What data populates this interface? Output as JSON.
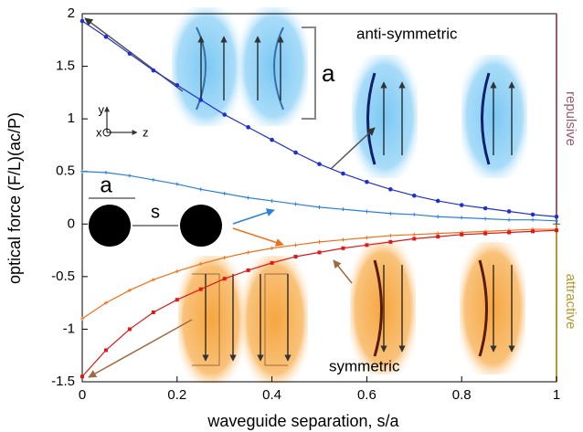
{
  "chart_data": {
    "type": "line",
    "xlabel": "waveguide separation, s/a",
    "ylabel": "optical force (F/L)(ac/P)",
    "x": [
      0,
      0.05,
      0.1,
      0.15,
      0.2,
      0.25,
      0.3,
      0.35,
      0.4,
      0.45,
      0.5,
      0.55,
      0.6,
      0.65,
      0.7,
      0.75,
      0.8,
      0.85,
      0.9,
      0.95,
      1
    ],
    "series": [
      {
        "color": "#1f2fd0",
        "marker": "circle",
        "values": [
          1.93,
          1.78,
          1.62,
          1.46,
          1.32,
          1.18,
          1.04,
          0.92,
          0.8,
          0.68,
          0.57,
          0.48,
          0.4,
          0.33,
          0.27,
          0.22,
          0.18,
          0.15,
          0.12,
          0.09,
          0.07
        ]
      },
      {
        "color": "#2b7fe0",
        "marker": "plus",
        "values": [
          0.5,
          0.49,
          0.46,
          0.42,
          0.38,
          0.33,
          0.29,
          0.25,
          0.22,
          0.19,
          0.16,
          0.14,
          0.12,
          0.1,
          0.09,
          0.07,
          0.06,
          0.05,
          0.04,
          0.04,
          0.03
        ]
      },
      {
        "color": "#f07018",
        "marker": "plus",
        "values": [
          -0.9,
          -0.75,
          -0.63,
          -0.53,
          -0.45,
          -0.38,
          -0.32,
          -0.27,
          -0.23,
          -0.2,
          -0.17,
          -0.15,
          -0.13,
          -0.11,
          -0.1,
          -0.09,
          -0.08,
          -0.07,
          -0.06,
          -0.05,
          -0.05
        ]
      },
      {
        "color": "#e01818",
        "marker": "square",
        "values": [
          -1.45,
          -1.2,
          -1.0,
          -0.84,
          -0.72,
          -0.62,
          -0.52,
          -0.44,
          -0.37,
          -0.31,
          -0.27,
          -0.23,
          -0.2,
          -0.17,
          -0.14,
          -0.12,
          -0.1,
          -0.09,
          -0.08,
          -0.07,
          -0.06
        ]
      }
    ],
    "xlim": [
      0,
      1
    ],
    "xticks": [
      0,
      0.2,
      0.4,
      0.6,
      0.8,
      1
    ],
    "ylim": [
      -1.5,
      2
    ],
    "yticks": [
      -1.5,
      -1,
      -0.5,
      0,
      0.5,
      1,
      1.5,
      2
    ],
    "grid": false,
    "annotations": {
      "anti_symmetric": "anti-symmetric",
      "symmetric": "symmetric",
      "repulsive": "repulsive",
      "attractive": "attractive",
      "inset_a": "a",
      "diameter_a": "a",
      "separation_s": "s",
      "axis_x": "x",
      "axis_y": "y",
      "axis_z": "z"
    }
  }
}
